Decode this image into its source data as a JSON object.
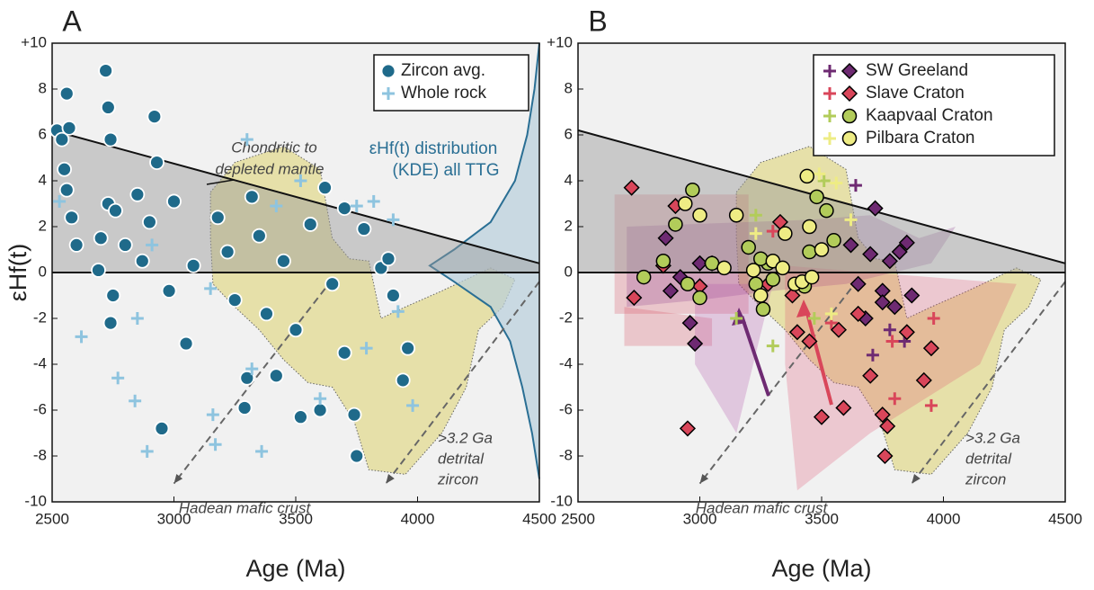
{
  "chart_data": [
    {
      "type": "scatter",
      "panel_label": "A",
      "xlabel": "Age (Ma)",
      "ylabel": "εHf(t)",
      "xlim": [
        2500,
        4500
      ],
      "ylim": [
        -10,
        10
      ],
      "xticks": [
        2500,
        3000,
        3500,
        4000,
        4500
      ],
      "yticks": [
        {
          "value": 10,
          "label": "+10"
        },
        8,
        6,
        4,
        2,
        0,
        -2,
        -4,
        -6,
        -8,
        -10
      ],
      "legend": "upper right",
      "mantle_line": {
        "x": [
          2500,
          4500
        ],
        "y": [
          6.2,
          0.4
        ]
      },
      "hadean_lines": [
        {
          "x": [
            3650,
            3000
          ],
          "y": [
            -0.3,
            -9.2
          ]
        },
        {
          "x": [
            4500,
            3870
          ],
          "y": [
            -0.4,
            -9.2
          ]
        }
      ],
      "annotations": [
        "Chondritic to",
        "depleted mantle",
        "εHf(t) distribution",
        "(KDE) all TTG",
        "Hadean mafic crust",
        ">3.2 Ga",
        "detrital",
        "zircon"
      ],
      "series": [
        {
          "name": "Zircon avg.",
          "color": "#1f6a8a",
          "marker": "circle",
          "edge": "#ffffff",
          "x": [
            2520,
            2540,
            2550,
            2560,
            2570,
            2560,
            2580,
            2600,
            2690,
            2700,
            2720,
            2730,
            2740,
            2730,
            2750,
            2740,
            2760,
            2800,
            2850,
            2870,
            2900,
            2920,
            2930,
            2950,
            2980,
            3000,
            3050,
            3080,
            3180,
            3220,
            3250,
            3300,
            3290,
            3320,
            3350,
            3380,
            3420,
            3450,
            3500,
            3520,
            3560,
            3600,
            3620,
            3650,
            3700,
            3740,
            3750,
            3780,
            3850,
            3880,
            3900,
            3960,
            3940,
            3700
          ],
          "values": [
            6.2,
            5.8,
            4.5,
            7.8,
            6.3,
            3.6,
            2.4,
            1.2,
            0.1,
            1.5,
            8.8,
            7.2,
            5.8,
            3,
            -1,
            -2.2,
            2.7,
            1.2,
            3.4,
            0.5,
            2.2,
            6.8,
            4.8,
            -6.8,
            -0.8,
            3.1,
            -3.1,
            0.3,
            2.4,
            0.9,
            -1.2,
            -4.6,
            -5.9,
            3.3,
            1.6,
            -1.8,
            -4.5,
            0.5,
            -2.5,
            -6.3,
            2.1,
            -6,
            3.7,
            -0.5,
            -3.5,
            -6.2,
            -8,
            1.9,
            0.2,
            0.6,
            -1,
            -3.3,
            -4.7,
            2.8
          ]
        },
        {
          "name": "Whole rock",
          "color": "#8ec4df",
          "marker": "plus",
          "x": [
            2530,
            2620,
            2770,
            2840,
            2850,
            2890,
            2910,
            3150,
            3160,
            3170,
            3300,
            3320,
            3360,
            3420,
            3520,
            3600,
            3750,
            3790,
            3900,
            3920,
            3980,
            3820
          ],
          "values": [
            3.1,
            -2.8,
            -4.6,
            -5.6,
            -2,
            -7.8,
            1.2,
            -0.7,
            -6.2,
            -7.5,
            5.8,
            -4.2,
            -7.8,
            2.9,
            4,
            -5.5,
            2.9,
            -3.3,
            2.3,
            -1.7,
            -5.8,
            3.1
          ]
        }
      ]
    },
    {
      "type": "scatter",
      "panel_label": "B",
      "xlabel": "Age (Ma)",
      "xlim": [
        2500,
        4500
      ],
      "ylim": [
        -10,
        10
      ],
      "xticks": [
        2500,
        3000,
        3500,
        4000,
        4500
      ],
      "yticks": [
        {
          "value": 10,
          "label": "+10"
        },
        8,
        6,
        4,
        2,
        0,
        -2,
        -4,
        -6,
        -8,
        -10
      ],
      "legend": "upper right",
      "mantle_line": {
        "x": [
          2500,
          4500
        ],
        "y": [
          6.2,
          0.4
        ]
      },
      "hadean_lines": [
        {
          "x": [
            3650,
            3000
          ],
          "y": [
            -0.3,
            -9.2
          ]
        },
        {
          "x": [
            4500,
            3870
          ],
          "y": [
            -0.4,
            -9.2
          ]
        }
      ],
      "annotations": [
        "Hadean mafic crust",
        ">3.2 Ga",
        "detrital",
        "zircon"
      ],
      "series": [
        {
          "name": "SW Greeland",
          "color": "#6e2a72",
          "marker": "diamond",
          "edge": "#000000",
          "x": [
            2860,
            2880,
            2920,
            2960,
            2980,
            3000,
            3620,
            3650,
            3680,
            3700,
            3720,
            3750,
            3780,
            3800,
            3820,
            3850,
            3870,
            3750
          ],
          "values": [
            1.5,
            -0.8,
            -0.2,
            -2.2,
            -3.1,
            0.4,
            1.2,
            -0.5,
            -2,
            0.8,
            2.8,
            -0.8,
            0.5,
            -1.5,
            0.9,
            1.3,
            -1,
            -1.3
          ],
          "wr_x": [
            3640,
            3710,
            3780,
            3840
          ],
          "wr_values": [
            3.8,
            -3.6,
            -2.5,
            -3
          ]
        },
        {
          "name": "Slave Craton",
          "color": "#d9465a",
          "marker": "diamond",
          "edge": "#000000",
          "x": [
            2720,
            2730,
            2850,
            2900,
            2950,
            3000,
            3050,
            3280,
            3330,
            3380,
            3400,
            3450,
            3500,
            3570,
            3590,
            3650,
            3700,
            3750,
            3760,
            3850,
            3920,
            3950,
            3770
          ],
          "values": [
            3.7,
            -1.1,
            0.3,
            2.9,
            -6.8,
            -0.6,
            0.4,
            -0.5,
            2.2,
            -1,
            -2.6,
            -3,
            -6.3,
            -2.5,
            -5.9,
            -1.8,
            -4.5,
            -6.2,
            -8,
            -2.6,
            -4.7,
            -3.3,
            -6.7
          ],
          "wr_x": [
            3300,
            3540,
            3790,
            3800,
            3950,
            3960
          ],
          "wr_values": [
            1.8,
            -2.2,
            -3,
            -5.5,
            -5.8,
            -2
          ]
        },
        {
          "name": "Kaapvaal Craton",
          "color": "#b2cc5a",
          "marker": "circle",
          "edge": "#000000",
          "x": [
            2770,
            2850,
            2900,
            2950,
            2970,
            3000,
            3050,
            3200,
            3230,
            3260,
            3280,
            3430,
            3450,
            3480,
            3520,
            3550,
            3300,
            3250
          ],
          "values": [
            -0.2,
            0.5,
            2.1,
            -0.5,
            3.6,
            -1.1,
            0.4,
            1.1,
            -0.5,
            -1.6,
            0.4,
            -0.6,
            0.9,
            3.3,
            2.7,
            1.4,
            -0.3,
            0.6
          ],
          "wr_x": [
            3230,
            3300,
            3510,
            3470,
            3150
          ],
          "wr_values": [
            2.5,
            -3.2,
            4,
            -2,
            -2
          ]
        },
        {
          "name": "Pilbara Craton",
          "color": "#eeec84",
          "marker": "circle",
          "edge": "#000000",
          "x": [
            2940,
            3000,
            3100,
            3150,
            3220,
            3250,
            3300,
            3340,
            3390,
            3420,
            3440,
            3450,
            3460,
            3500,
            3350
          ],
          "values": [
            3,
            2.5,
            0.2,
            2.5,
            0.1,
            -1,
            0.5,
            0.2,
            -0.5,
            -0.4,
            4.2,
            2,
            -0.2,
            1,
            1.7
          ],
          "wr_x": [
            3230,
            3490,
            3560,
            3620,
            3540
          ],
          "wr_values": [
            1.7,
            4.3,
            3.9,
            2.3,
            -1.8
          ]
        }
      ]
    }
  ]
}
